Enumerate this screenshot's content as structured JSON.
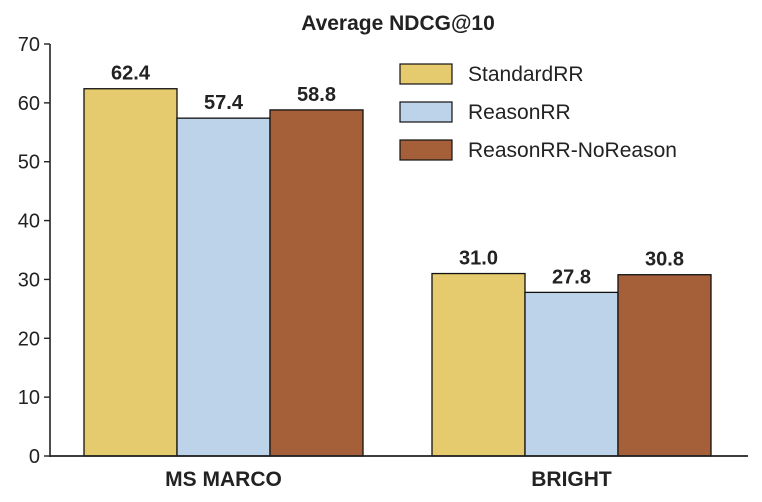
{
  "chart_data": {
    "type": "bar",
    "title": "Average NDCG@10",
    "categories": [
      "MS MARCO",
      "BRIGHT"
    ],
    "series": [
      {
        "name": "StandardRR",
        "values": [
          62.4,
          31.0
        ],
        "labels": [
          "62.4",
          "31.0"
        ],
        "color": "#E6CB6E"
      },
      {
        "name": "ReasonRR",
        "values": [
          57.4,
          27.8
        ],
        "labels": [
          "57.4",
          "27.8"
        ],
        "color": "#BCD3EA"
      },
      {
        "name": "ReasonRR-NoReason",
        "values": [
          58.8,
          30.8
        ],
        "labels": [
          "58.8",
          "30.8"
        ],
        "color": "#A66039"
      }
    ],
    "ylim": [
      0,
      70
    ],
    "yticks": [
      "0",
      "10",
      "20",
      "30",
      "40",
      "50",
      "60",
      "70"
    ],
    "xlabel": "",
    "ylabel": "",
    "grid": false,
    "legend_position": "top-right"
  }
}
